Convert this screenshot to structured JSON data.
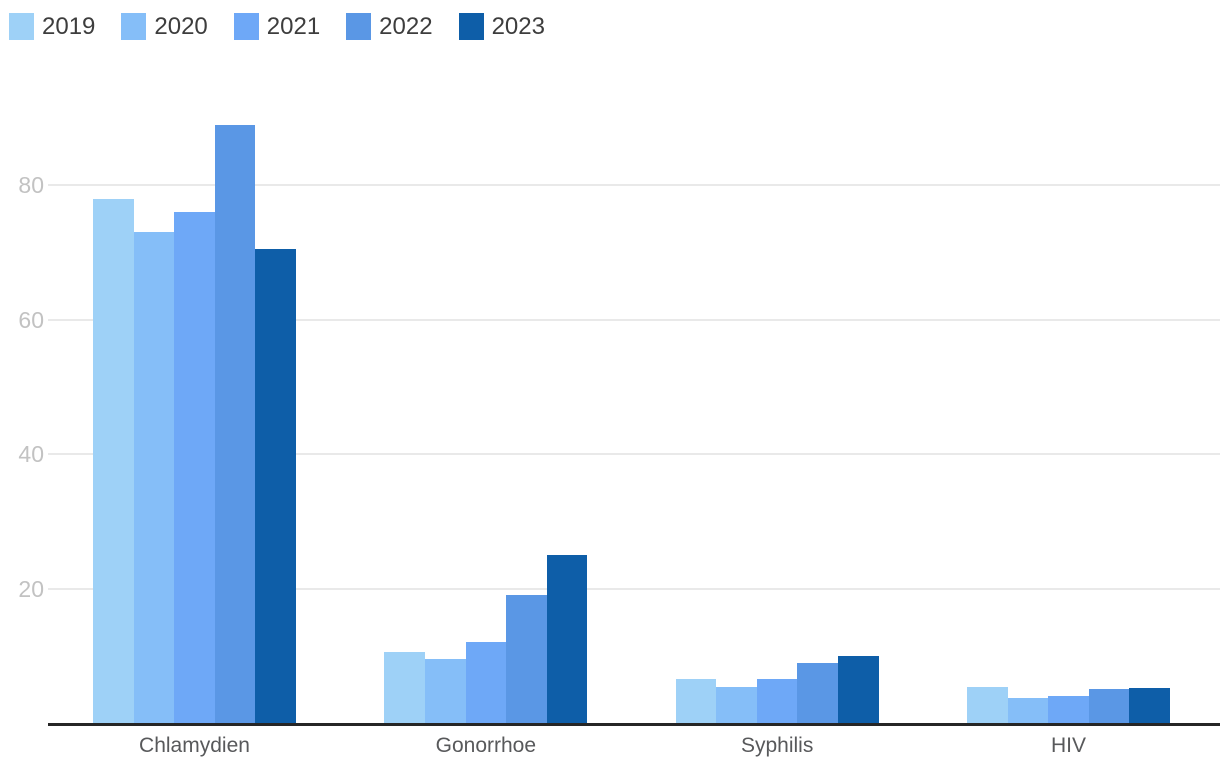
{
  "chart_data": {
    "type": "bar",
    "title": "",
    "xlabel": "",
    "ylabel": "",
    "categories": [
      "Chlamydien",
      "Gonorrhoe",
      "Syphilis",
      "HIV"
    ],
    "series": [
      {
        "name": "2019",
        "color": "#9ed1f7",
        "values": [
          78,
          10.5,
          6.5,
          5.4
        ]
      },
      {
        "name": "2020",
        "color": "#85bef8",
        "values": [
          73,
          9.5,
          5.4,
          3.7
        ]
      },
      {
        "name": "2021",
        "color": "#6ea8f7",
        "values": [
          76,
          12,
          6.6,
          4
        ]
      },
      {
        "name": "2022",
        "color": "#5a97e5",
        "values": [
          89,
          19,
          9,
          5
        ]
      },
      {
        "name": "2023",
        "color": "#0e5ea8",
        "values": [
          70.5,
          25,
          10,
          5.2
        ]
      }
    ],
    "y_ticks": [
      20,
      40,
      60,
      80
    ],
    "ylim": [
      0,
      95.8
    ],
    "grid": "horizontal",
    "legend_position": "top-left",
    "colors": {
      "background": "#ffffff",
      "axis_line": "#262626",
      "gridline": "#e9e9e9",
      "tick_label": "#c2c2c2",
      "category_label": "#58595b",
      "legend_text": "#3d3d3d"
    }
  }
}
